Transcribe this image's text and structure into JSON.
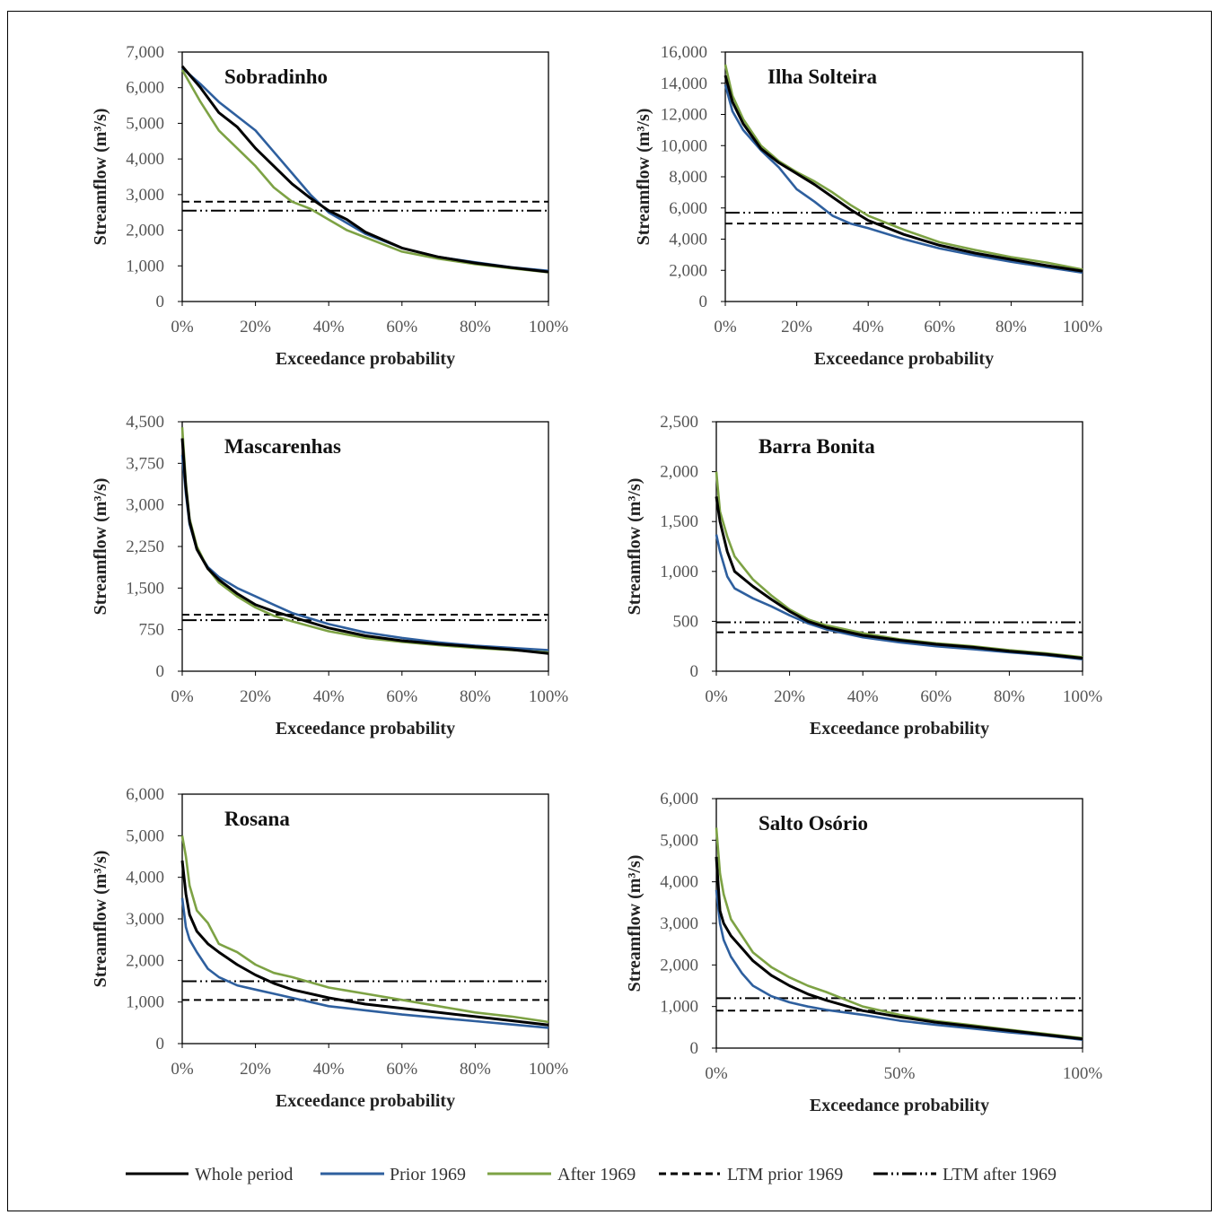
{
  "figure": {
    "legend": [
      {
        "label": "Whole period",
        "color": "#000000",
        "style": "solid"
      },
      {
        "label": "Prior 1969",
        "color": "#2e5f9e",
        "style": "solid"
      },
      {
        "label": "After 1969",
        "color": "#7da244",
        "style": "solid"
      },
      {
        "label": "LTM prior 1969",
        "color": "#000000",
        "style": "dash"
      },
      {
        "label": "LTM after 1969",
        "color": "#000000",
        "style": "dashdotdot"
      }
    ]
  },
  "chart_data": [
    {
      "type": "line",
      "title": "Sobradinho",
      "xlabel": "Exceedance probability",
      "ylabel": "Streamflow (m³/s)",
      "xlim": [
        0,
        100
      ],
      "ylim": [
        0,
        7000
      ],
      "xticks": [
        "0%",
        "20%",
        "40%",
        "60%",
        "80%",
        "100%"
      ],
      "yticks": [
        "0",
        "1,000",
        "2,000",
        "3,000",
        "4,000",
        "5,000",
        "6,000",
        "7,000"
      ],
      "ltm_prior_1969": 2800,
      "ltm_after_1969": 2550,
      "series": [
        {
          "name": "Whole period",
          "x": [
            0,
            5,
            10,
            15,
            20,
            25,
            30,
            35,
            40,
            45,
            50,
            60,
            70,
            80,
            90,
            100
          ],
          "y": [
            6600,
            6000,
            5300,
            4900,
            4300,
            3800,
            3300,
            2900,
            2550,
            2300,
            1950,
            1500,
            1250,
            1080,
            950,
            830
          ]
        },
        {
          "name": "Prior 1969",
          "x": [
            0,
            5,
            10,
            15,
            20,
            25,
            30,
            35,
            40,
            45,
            50,
            60,
            70,
            80,
            90,
            100
          ],
          "y": [
            6550,
            6100,
            5600,
            5200,
            4800,
            4200,
            3600,
            3000,
            2500,
            2200,
            1900,
            1500,
            1250,
            1100,
            960,
            860
          ]
        },
        {
          "name": "After 1969",
          "x": [
            0,
            5,
            10,
            15,
            20,
            25,
            30,
            35,
            40,
            45,
            50,
            60,
            70,
            80,
            90,
            100
          ],
          "y": [
            6500,
            5600,
            4800,
            4300,
            3800,
            3200,
            2800,
            2600,
            2300,
            2000,
            1800,
            1400,
            1200,
            1050,
            930,
            820
          ]
        }
      ]
    },
    {
      "type": "line",
      "title": "Ilha Solteira",
      "xlabel": "Exceedance probability",
      "ylabel": "Streamflow (m³/s)",
      "xlim": [
        0,
        100
      ],
      "ylim": [
        0,
        16000
      ],
      "xticks": [
        "0%",
        "20%",
        "40%",
        "60%",
        "80%",
        "100%"
      ],
      "yticks": [
        "0",
        "2,000",
        "4,000",
        "6,000",
        "8,000",
        "10,000",
        "12,000",
        "14,000",
        "16,000"
      ],
      "ltm_prior_1969": 5000,
      "ltm_after_1969": 5700,
      "series": [
        {
          "name": "Whole period",
          "x": [
            0,
            2,
            5,
            10,
            15,
            20,
            25,
            30,
            35,
            40,
            50,
            60,
            70,
            80,
            90,
            100
          ],
          "y": [
            14500,
            12800,
            11400,
            9800,
            8900,
            8200,
            7500,
            6700,
            5900,
            5200,
            4300,
            3600,
            3100,
            2700,
            2300,
            1950
          ]
        },
        {
          "name": "Prior 1969",
          "x": [
            0,
            2,
            5,
            10,
            15,
            20,
            25,
            30,
            35,
            40,
            50,
            60,
            70,
            80,
            90,
            100
          ],
          "y": [
            13900,
            12200,
            11000,
            9700,
            8600,
            7200,
            6400,
            5500,
            5000,
            4700,
            4000,
            3400,
            2950,
            2550,
            2200,
            1850
          ]
        },
        {
          "name": "After 1969",
          "x": [
            0,
            2,
            5,
            10,
            15,
            20,
            25,
            30,
            35,
            40,
            50,
            60,
            70,
            80,
            90,
            100
          ],
          "y": [
            15200,
            13200,
            11700,
            10000,
            9000,
            8300,
            7700,
            7000,
            6200,
            5500,
            4600,
            3800,
            3300,
            2850,
            2500,
            2050
          ]
        }
      ]
    },
    {
      "type": "line",
      "title": "Mascarenhas",
      "xlabel": "Exceedance probability",
      "ylabel": "Streamflow (m³/s)",
      "xlim": [
        0,
        100
      ],
      "ylim": [
        0,
        4500
      ],
      "xticks": [
        "0%",
        "20%",
        "40%",
        "60%",
        "80%",
        "100%"
      ],
      "yticks": [
        "0",
        "750",
        "1,500",
        "2,250",
        "3,000",
        "3,750",
        "4,500"
      ],
      "ltm_prior_1969": 1020,
      "ltm_after_1969": 920,
      "series": [
        {
          "name": "Whole period",
          "x": [
            0,
            1,
            2,
            4,
            7,
            10,
            15,
            20,
            25,
            30,
            40,
            50,
            60,
            70,
            80,
            90,
            100
          ],
          "y": [
            4200,
            3300,
            2700,
            2200,
            1850,
            1650,
            1400,
            1200,
            1080,
            980,
            780,
            640,
            550,
            490,
            440,
            390,
            320
          ]
        },
        {
          "name": "Prior 1969",
          "x": [
            0,
            1,
            2,
            4,
            7,
            10,
            15,
            20,
            25,
            30,
            40,
            50,
            60,
            70,
            80,
            90,
            100
          ],
          "y": [
            3900,
            3200,
            2650,
            2200,
            1880,
            1700,
            1500,
            1350,
            1200,
            1050,
            850,
            700,
            600,
            520,
            460,
            420,
            380
          ]
        },
        {
          "name": "After 1969",
          "x": [
            0,
            1,
            2,
            4,
            7,
            10,
            15,
            20,
            25,
            30,
            40,
            50,
            60,
            70,
            80,
            90,
            100
          ],
          "y": [
            4400,
            3400,
            2750,
            2250,
            1850,
            1600,
            1350,
            1150,
            1000,
            900,
            720,
            600,
            530,
            470,
            420,
            380,
            340
          ]
        }
      ]
    },
    {
      "type": "line",
      "title": "Barra Bonita",
      "xlabel": "Exceedance probability",
      "ylabel": "Streamflow (m³/s)",
      "xlim": [
        0,
        100
      ],
      "ylim": [
        0,
        2500
      ],
      "xticks": [
        "0%",
        "20%",
        "40%",
        "60%",
        "80%",
        "100%"
      ],
      "yticks": [
        "0",
        "500",
        "1,000",
        "1,500",
        "2,000",
        "2,500"
      ],
      "ltm_prior_1969": 390,
      "ltm_after_1969": 490,
      "series": [
        {
          "name": "Whole period",
          "x": [
            0,
            1,
            3,
            5,
            10,
            15,
            20,
            25,
            30,
            40,
            50,
            60,
            70,
            80,
            90,
            100
          ],
          "y": [
            1750,
            1500,
            1200,
            1000,
            850,
            720,
            600,
            500,
            440,
            360,
            310,
            270,
            240,
            200,
            170,
            130
          ]
        },
        {
          "name": "Prior 1969",
          "x": [
            0,
            1,
            3,
            5,
            10,
            15,
            20,
            25,
            30,
            40,
            50,
            60,
            70,
            80,
            90,
            100
          ],
          "y": [
            1370,
            1200,
            950,
            830,
            730,
            650,
            560,
            480,
            420,
            340,
            290,
            250,
            220,
            190,
            160,
            120
          ]
        },
        {
          "name": "After 1969",
          "x": [
            0,
            1,
            3,
            5,
            10,
            15,
            20,
            25,
            30,
            40,
            50,
            60,
            70,
            80,
            90,
            100
          ],
          "y": [
            2000,
            1600,
            1350,
            1150,
            920,
            760,
            620,
            520,
            460,
            380,
            320,
            280,
            250,
            210,
            180,
            140
          ]
        }
      ]
    },
    {
      "type": "line",
      "title": "Rosana",
      "xlabel": "Exceedance probability",
      "ylabel": "Streamflow (m³/s)",
      "xlim": [
        0,
        100
      ],
      "ylim": [
        0,
        6000
      ],
      "xticks": [
        "0%",
        "20%",
        "40%",
        "60%",
        "80%",
        "100%"
      ],
      "yticks": [
        "0",
        "1,000",
        "2,000",
        "3,000",
        "4,000",
        "5,000",
        "6,000"
      ],
      "ltm_prior_1969": 1050,
      "ltm_after_1969": 1500,
      "series": [
        {
          "name": "Whole period",
          "x": [
            0,
            1,
            2,
            4,
            7,
            10,
            15,
            20,
            25,
            30,
            40,
            50,
            60,
            70,
            80,
            90,
            100
          ],
          "y": [
            4400,
            3600,
            3100,
            2700,
            2400,
            2200,
            1900,
            1650,
            1450,
            1300,
            1100,
            950,
            850,
            750,
            650,
            550,
            450
          ]
        },
        {
          "name": "Prior 1969",
          "x": [
            0,
            1,
            2,
            4,
            7,
            10,
            15,
            20,
            25,
            30,
            40,
            50,
            60,
            70,
            80,
            90,
            100
          ],
          "y": [
            3500,
            2800,
            2500,
            2200,
            1800,
            1600,
            1400,
            1300,
            1200,
            1100,
            900,
            800,
            700,
            620,
            540,
            460,
            380
          ]
        },
        {
          "name": "After 1969",
          "x": [
            0,
            1,
            2,
            4,
            7,
            10,
            15,
            20,
            25,
            30,
            40,
            50,
            60,
            70,
            80,
            90,
            100
          ],
          "y": [
            5000,
            4500,
            3800,
            3200,
            2900,
            2400,
            2200,
            1900,
            1700,
            1600,
            1350,
            1200,
            1050,
            900,
            750,
            650,
            520
          ]
        }
      ]
    },
    {
      "type": "line",
      "title": "Salto Osório",
      "xlabel": "Exceedance probability",
      "ylabel": "Streamflow (m³/s)",
      "xlim": [
        0,
        100
      ],
      "ylim": [
        0,
        6000
      ],
      "xticks": [
        "0%",
        "50%",
        "100%"
      ],
      "yticks": [
        "0",
        "1,000",
        "2,000",
        "3,000",
        "4,000",
        "5,000",
        "6,000"
      ],
      "ltm_prior_1969": 900,
      "ltm_after_1969": 1200,
      "series": [
        {
          "name": "Whole period",
          "x": [
            0,
            1,
            2,
            4,
            7,
            10,
            15,
            20,
            25,
            30,
            40,
            50,
            60,
            70,
            80,
            90,
            100
          ],
          "y": [
            4600,
            3300,
            3000,
            2700,
            2400,
            2100,
            1750,
            1500,
            1300,
            1150,
            900,
            750,
            620,
            520,
            420,
            320,
            220
          ]
        },
        {
          "name": "Prior 1969",
          "x": [
            0,
            1,
            2,
            4,
            7,
            10,
            15,
            20,
            25,
            30,
            40,
            50,
            60,
            70,
            80,
            90,
            100
          ],
          "y": [
            3800,
            3000,
            2600,
            2200,
            1800,
            1500,
            1250,
            1100,
            1000,
            920,
            800,
            660,
            560,
            470,
            380,
            300,
            200
          ]
        },
        {
          "name": "After 1969",
          "x": [
            0,
            1,
            2,
            4,
            7,
            10,
            15,
            20,
            25,
            30,
            40,
            50,
            60,
            70,
            80,
            90,
            100
          ],
          "y": [
            5300,
            4200,
            3700,
            3100,
            2700,
            2300,
            1950,
            1700,
            1500,
            1350,
            1000,
            800,
            650,
            550,
            440,
            340,
            240
          ]
        }
      ]
    }
  ]
}
